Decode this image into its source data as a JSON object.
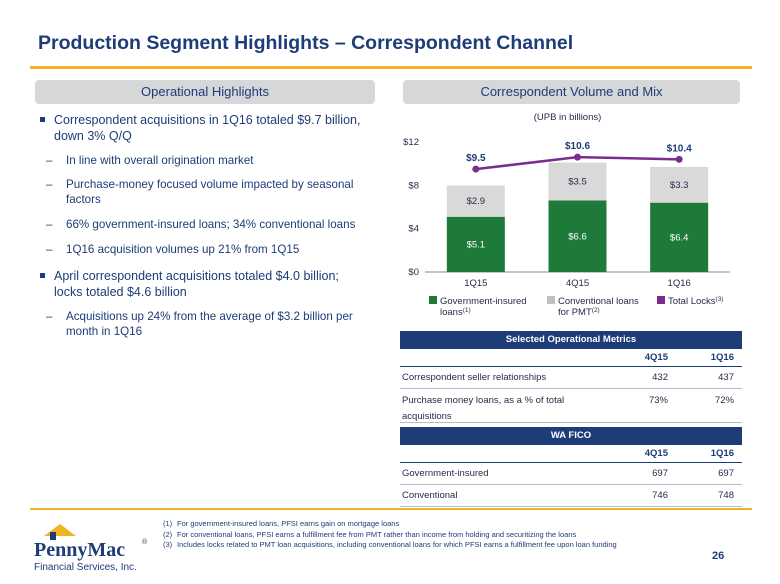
{
  "title": "Production Segment Highlights – Correspondent Channel",
  "left_header": "Operational Highlights",
  "right_header": "Correspondent Volume and Mix",
  "bullets": {
    "b1": "Correspondent acquisitions in 1Q16 totaled $9.7 billion, down 3% Q/Q",
    "b1a": "In line with overall origination market",
    "b1b": "Purchase-money focused volume impacted by seasonal factors",
    "b1c": "66% government-insured loans; 34% conventional loans",
    "b1d": "1Q16 acquisition volumes up 21% from 1Q15",
    "b2": "April correspondent acquisitions totaled $4.0 billion; locks totaled $4.6 billion",
    "b2a": "Acquisitions up 24% from the average of $3.2 billion per month in 1Q16"
  },
  "chart_data": {
    "type": "bar",
    "subtitle": "(UPB in billions)",
    "categories": [
      "1Q15",
      "4Q15",
      "1Q16"
    ],
    "series": [
      {
        "name": "Government-insured loans",
        "values": [
          5.1,
          6.6,
          6.4
        ],
        "labels": [
          "$5.1",
          "$6.6",
          "$6.4"
        ],
        "color": "#1e7a38",
        "footnote": "(1)"
      },
      {
        "name": "Conventional loans for PMT",
        "values": [
          2.9,
          3.5,
          3.3
        ],
        "labels": [
          "$2.9",
          "$3.5",
          "$3.3"
        ],
        "color": "#d9d9d9",
        "footnote": "(2)"
      },
      {
        "name": "Total Locks",
        "type": "line",
        "values": [
          9.5,
          10.6,
          10.4
        ],
        "labels": [
          "$9.5",
          "$10.6",
          "$10.4"
        ],
        "color": "#7b2d8e",
        "footnote": "(3)"
      }
    ],
    "yticks": [
      "$0",
      "$4",
      "$8",
      "$12"
    ],
    "ytick_values": [
      0,
      4,
      8,
      12
    ],
    "ylim": [
      0,
      12
    ],
    "legend_position": "bottom"
  },
  "ops_table": {
    "title": "Selected Operational Metrics",
    "columns": [
      "4Q15",
      "1Q16"
    ],
    "rows": [
      {
        "label": "Correspondent seller relationships",
        "v1": "432",
        "v2": "437"
      },
      {
        "label": "Purchase money loans, as a % of total acquisitions",
        "v1": "73%",
        "v2": "72%"
      }
    ]
  },
  "fico_table": {
    "title": "WA FICO",
    "columns": [
      "4Q15",
      "1Q16"
    ],
    "rows": [
      {
        "label": "Government-insured",
        "v1": "697",
        "v2": "697"
      },
      {
        "label": "Conventional",
        "v1": "746",
        "v2": "748"
      }
    ]
  },
  "footnotes": [
    {
      "n": "(1)",
      "text": "For government-insured loans, PFSI earns gain on mortgage loans"
    },
    {
      "n": "(2)",
      "text": "For conventional loans, PFSI earns a fulfillment fee from PMT rather than income from holding and securitizing the loans"
    },
    {
      "n": "(3)",
      "text": "Includes locks related to PMT loan acquisitions, including conventional loans for which PFSI earns a fulfillment fee upon loan funding"
    }
  ],
  "logo": {
    "brand": "PennyMac",
    "registered": "®",
    "tagline": "Financial Services, Inc."
  },
  "page_number": "26"
}
